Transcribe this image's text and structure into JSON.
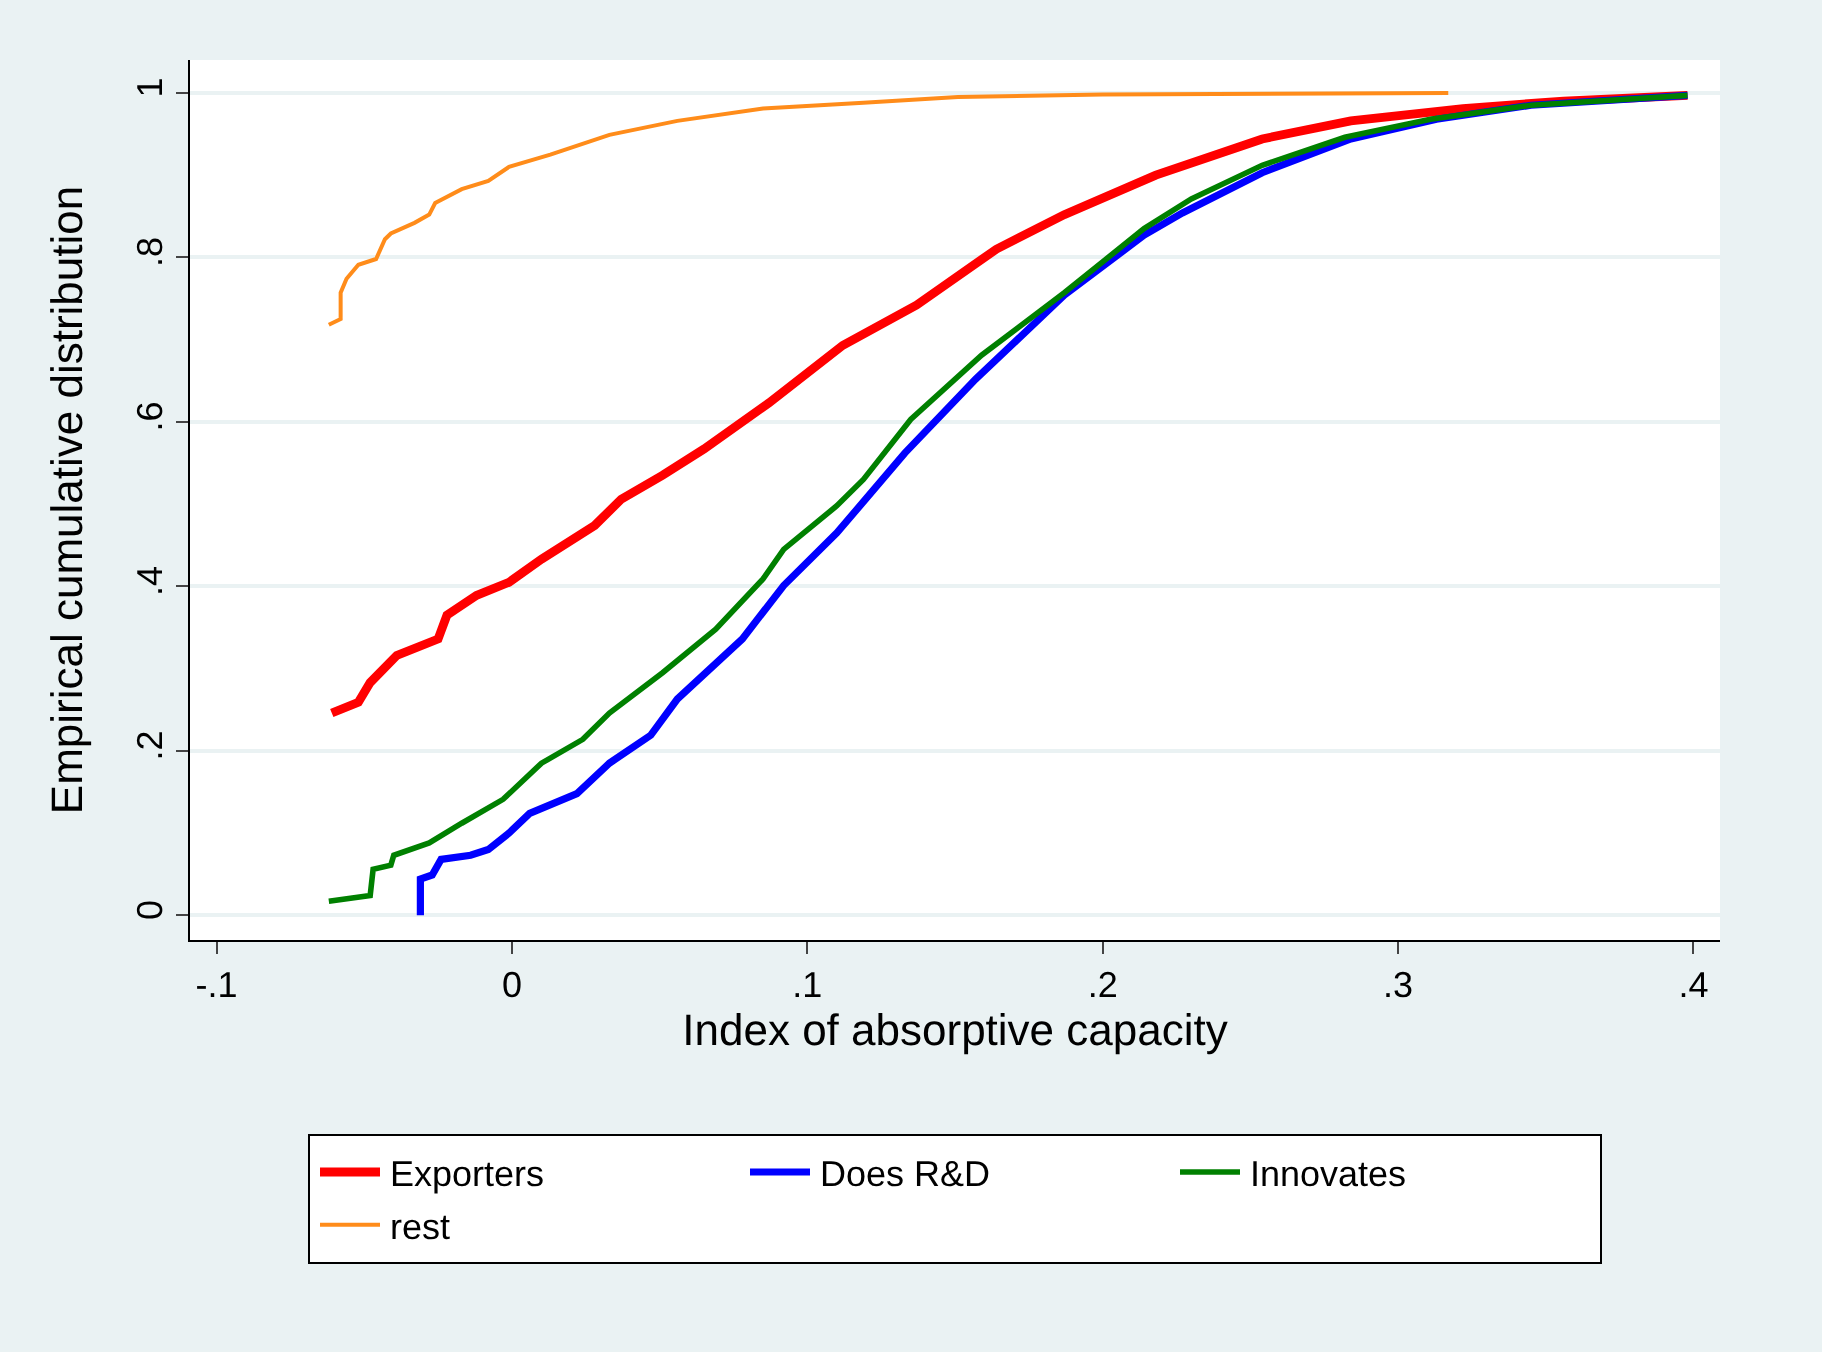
{
  "chart_data": {
    "type": "line",
    "xlabel": "Index of absorptive capacity",
    "ylabel": "Empirical cumulative distribution",
    "xlim": [
      -0.109,
      0.409
    ],
    "ylim": [
      -0.03,
      1.04
    ],
    "xticks": [
      {
        "value": -0.1,
        "label": "-.1"
      },
      0,
      {
        "value": 0.1,
        "label": ".1"
      },
      {
        "value": 0.2,
        "label": ".2"
      },
      {
        "value": 0.3,
        "label": ".3"
      },
      {
        "value": 0.4,
        "label": ".4"
      }
    ],
    "yticks": [
      0,
      {
        "value": 0.2,
        "label": ".2"
      },
      {
        "value": 0.4,
        "label": ".4"
      },
      {
        "value": 0.6,
        "label": ".6"
      },
      {
        "value": 0.8,
        "label": ".8"
      },
      1
    ],
    "grid": "y",
    "legend": "bottom",
    "marker": "none",
    "line_style": "solid",
    "series": [
      {
        "name": "Exporters",
        "color": "#ff0000",
        "x": [
          -0.061,
          -0.052,
          -0.048,
          -0.039,
          -0.025,
          -0.022,
          -0.012,
          -0.001,
          0.01,
          0.028,
          0.037,
          0.051,
          0.065,
          0.087,
          0.112,
          0.137,
          0.164,
          0.187,
          0.218,
          0.254,
          0.284,
          0.322,
          0.356,
          0.398
        ],
        "values": [
          0.246,
          0.259,
          0.283,
          0.316,
          0.336,
          0.365,
          0.389,
          0.405,
          0.433,
          0.474,
          0.506,
          0.535,
          0.567,
          0.623,
          0.693,
          0.742,
          0.81,
          0.852,
          0.9,
          0.944,
          0.966,
          0.981,
          0.99,
          0.997
        ]
      },
      {
        "name": "Does R&D",
        "color": "#0000ff",
        "x": [
          -0.031,
          -0.031,
          -0.027,
          -0.024,
          -0.014,
          -0.008,
          -0.001,
          0.006,
          0.022,
          0.033,
          0.047,
          0.056,
          0.078,
          0.092,
          0.11,
          0.133,
          0.157,
          0.187,
          0.214,
          0.227,
          0.254,
          0.284,
          0.313,
          0.345,
          0.398
        ],
        "values": [
          0,
          0.044,
          0.049,
          0.068,
          0.073,
          0.08,
          0.1,
          0.124,
          0.148,
          0.185,
          0.219,
          0.263,
          0.336,
          0.401,
          0.465,
          0.562,
          0.652,
          0.754,
          0.827,
          0.854,
          0.903,
          0.944,
          0.968,
          0.985,
          0.997
        ]
      },
      {
        "name": "Innovates",
        "color": "#008000",
        "x": [
          -0.062,
          -0.048,
          -0.047,
          -0.041,
          -0.04,
          -0.028,
          -0.017,
          -0.003,
          0.01,
          0.024,
          0.033,
          0.051,
          0.069,
          0.085,
          0.092,
          0.11,
          0.119,
          0.135,
          0.159,
          0.187,
          0.214,
          0.23,
          0.254,
          0.282,
          0.311,
          0.345,
          0.398
        ],
        "values": [
          0.017,
          0.024,
          0.056,
          0.061,
          0.073,
          0.088,
          0.112,
          0.141,
          0.185,
          0.214,
          0.246,
          0.295,
          0.348,
          0.409,
          0.445,
          0.498,
          0.53,
          0.603,
          0.681,
          0.757,
          0.835,
          0.871,
          0.912,
          0.946,
          0.968,
          0.985,
          0.997
        ]
      },
      {
        "name": "rest",
        "color": "#ff8c1a",
        "x": [
          -0.062,
          -0.058,
          -0.058,
          -0.056,
          -0.052,
          -0.046,
          -0.043,
          -0.041,
          -0.033,
          -0.028,
          -0.026,
          -0.017,
          -0.008,
          -0.001,
          0.013,
          0.033,
          0.056,
          0.085,
          0.119,
          0.151,
          0.2,
          0.317
        ],
        "values": [
          0.718,
          0.725,
          0.757,
          0.774,
          0.791,
          0.798,
          0.822,
          0.829,
          0.842,
          0.852,
          0.866,
          0.883,
          0.893,
          0.91,
          0.925,
          0.949,
          0.966,
          0.981,
          0.988,
          0.995,
          0.998,
          1.0
        ]
      }
    ]
  }
}
